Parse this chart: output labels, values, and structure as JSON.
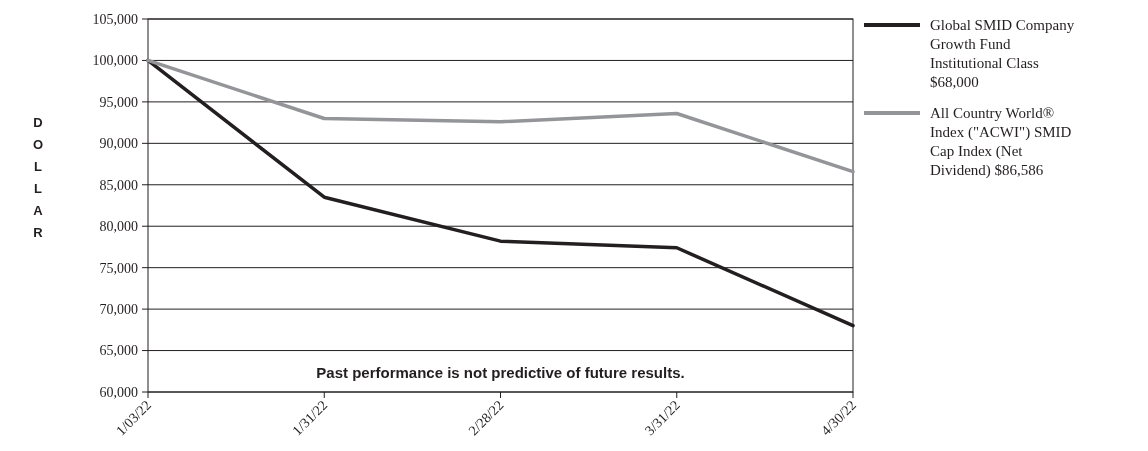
{
  "chart_data": {
    "type": "line",
    "ylabel": "DOLLAR",
    "categories": [
      "1/03/22",
      "1/31/22",
      "2/28/22",
      "3/31/22",
      "4/30/22"
    ],
    "series": [
      {
        "name": "Global SMID Company Growth Fund Institutional Class $68,000",
        "color": "#231f20",
        "values": [
          100000,
          83500,
          78200,
          77400,
          68000
        ]
      },
      {
        "name": "All Country World® Index (\"ACWI\") SMID Cap Index (Net Dividend) $86,586",
        "color": "#939598",
        "values": [
          100000,
          93000,
          92600,
          93600,
          86586
        ]
      }
    ],
    "ylim": [
      60000,
      105000
    ],
    "yticks": [
      {
        "value": 60000,
        "label": "60,000"
      },
      {
        "value": 65000,
        "label": "65,000"
      },
      {
        "value": 70000,
        "label": "70,000"
      },
      {
        "value": 75000,
        "label": "75,000"
      },
      {
        "value": 80000,
        "label": "80,000"
      },
      {
        "value": 85000,
        "label": "85,000"
      },
      {
        "value": 90000,
        "label": "90,000"
      },
      {
        "value": 95000,
        "label": "95,000"
      },
      {
        "value": 100000,
        "label": "100,000"
      },
      {
        "value": 105000,
        "label": "105,000"
      }
    ],
    "grid": "y",
    "legend": "right",
    "line_style": "solid",
    "marker": "none",
    "annotations": [
      "Past performance is not predictive of future results."
    ]
  }
}
